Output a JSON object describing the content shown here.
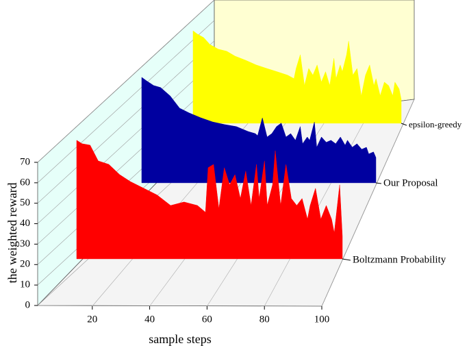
{
  "chart_data": {
    "type": "waterfall",
    "x_label": "sample steps",
    "y_label": "the weighted reward",
    "xlim": [
      0,
      100
    ],
    "xticks": [
      20,
      40,
      60,
      80,
      100
    ],
    "ylim": [
      0,
      70
    ],
    "yticks": [
      0,
      10,
      20,
      30,
      40,
      50,
      60,
      70
    ],
    "x": [
      1,
      3,
      6,
      9,
      13,
      17,
      21,
      26,
      31,
      36,
      41,
      46,
      49,
      50,
      52,
      54,
      56,
      58,
      60,
      62,
      64,
      66,
      68,
      69,
      71,
      72,
      74,
      75,
      77,
      79,
      81,
      83,
      85,
      87,
      88,
      90,
      92,
      94,
      96,
      97,
      99,
      100
    ],
    "series": [
      {
        "name": "Boltzmann Probability",
        "color": "#ff0000",
        "values": [
          80.8,
          79.1,
          78.4,
          70.7,
          69.0,
          64.0,
          60.6,
          57.3,
          54.0,
          48.9,
          50.6,
          48.9,
          45.6,
          67.4,
          69.0,
          47.3,
          67.4,
          59.0,
          64.0,
          52.3,
          65.7,
          48.9,
          69.0,
          52.3,
          70.7,
          48.9,
          59.0,
          75.7,
          48.9,
          69.0,
          52.3,
          48.9,
          52.3,
          42.2,
          48.9,
          57.3,
          42.2,
          48.9,
          42.2,
          35.5,
          59.0,
          33.9
        ]
      },
      {
        "name": "Our Proposal",
        "color": "#0000a0",
        "values": [
          74.4,
          72.7,
          70.4,
          69.4,
          65.3,
          59.3,
          57.0,
          54.6,
          52.6,
          51.3,
          50.3,
          47.9,
          46.9,
          45.9,
          54.6,
          45.2,
          46.9,
          50.3,
          52.0,
          45.2,
          46.9,
          43.6,
          50.3,
          41.9,
          45.2,
          43.6,
          52.6,
          40.2,
          45.2,
          42.6,
          43.6,
          41.9,
          45.2,
          41.2,
          43.6,
          40.2,
          41.9,
          39.2,
          40.2,
          36.9,
          37.9,
          35.2
        ]
      },
      {
        "name": "epsilon-greedy",
        "color": "#ffff00",
        "values": [
          68.0,
          66.4,
          64.7,
          61.3,
          59.0,
          58.0,
          55.6,
          53.6,
          51.3,
          49.6,
          48.0,
          46.3,
          44.6,
          49.6,
          56.3,
          41.2,
          49.6,
          46.3,
          51.3,
          42.9,
          48.0,
          41.2,
          54.6,
          44.6,
          51.3,
          48.0,
          56.3,
          63.0,
          46.3,
          49.6,
          36.1,
          46.3,
          51.3,
          41.2,
          44.6,
          36.2,
          42.9,
          41.2,
          36.2,
          42.9,
          39.6,
          34.5
        ]
      }
    ]
  }
}
